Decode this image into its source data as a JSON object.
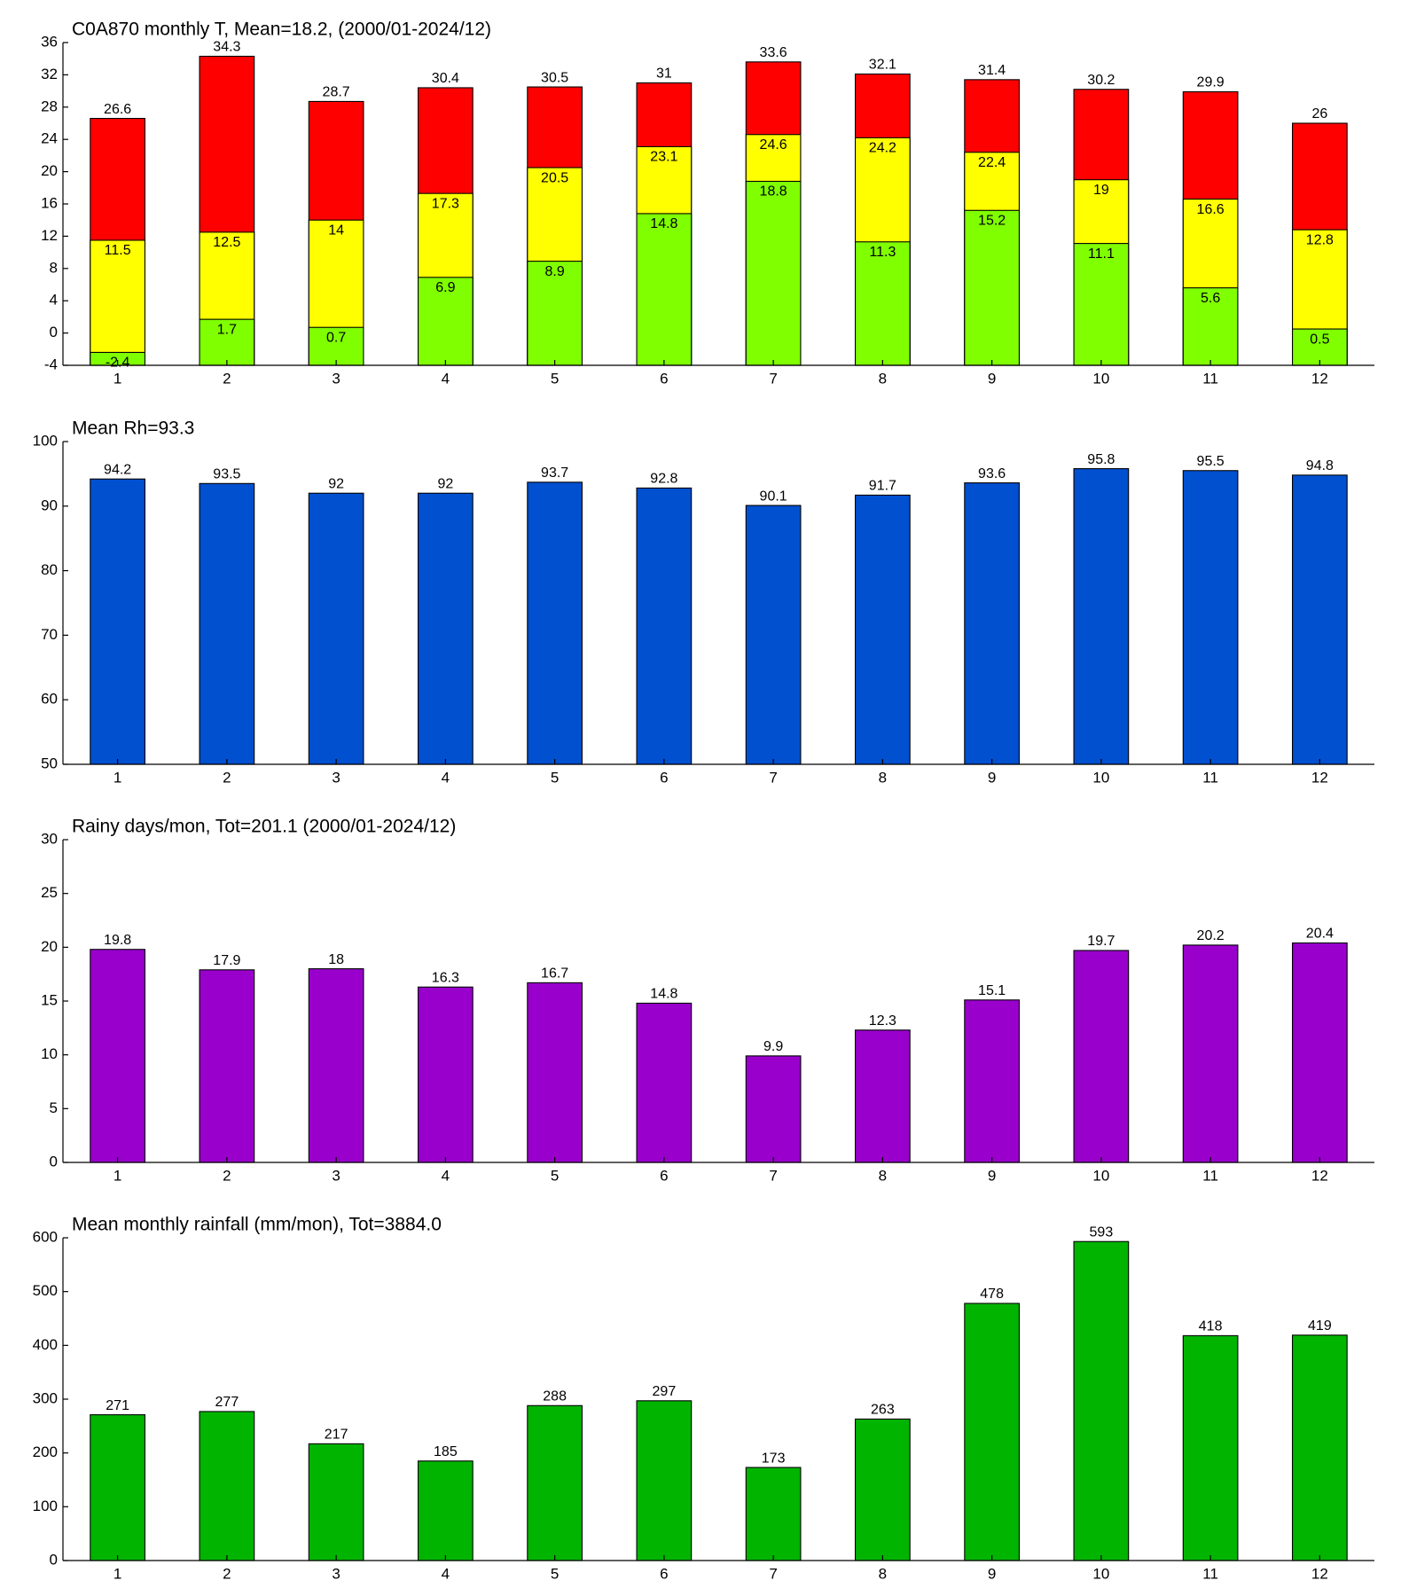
{
  "chart_data": [
    {
      "type": "bar",
      "bar_mode": "overlay",
      "title": "C0A870 monthly T, Mean=18.2, (2000/01-2024/12)",
      "categories": [
        "1",
        "2",
        "3",
        "4",
        "5",
        "6",
        "7",
        "8",
        "9",
        "10",
        "11",
        "12"
      ],
      "series": [
        {
          "color": "#ff0000",
          "values": [
            26.6,
            34.3,
            28.7,
            30.4,
            30.5,
            31,
            33.6,
            32.1,
            31.4,
            30.2,
            29.9,
            26
          ]
        },
        {
          "color": "#ffff00",
          "values": [
            11.5,
            12.5,
            14,
            17.3,
            20.5,
            23.1,
            24.6,
            24.2,
            22.4,
            19,
            16.6,
            12.8
          ]
        },
        {
          "color": "#80ff00",
          "values": [
            -2.4,
            1.7,
            0.7,
            6.9,
            8.9,
            14.8,
            18.8,
            11.3,
            15.2,
            11.1,
            5.6,
            0.5
          ]
        }
      ],
      "ylim": [
        -4,
        36
      ],
      "yticks": [
        -4,
        0,
        4,
        8,
        12,
        16,
        20,
        24,
        28,
        32,
        36
      ]
    },
    {
      "type": "bar",
      "title": "Mean Rh=93.3",
      "categories": [
        "1",
        "2",
        "3",
        "4",
        "5",
        "6",
        "7",
        "8",
        "9",
        "10",
        "11",
        "12"
      ],
      "series": [
        {
          "color": "#0050d0",
          "values": [
            94.2,
            93.5,
            92,
            92,
            93.7,
            92.8,
            90.1,
            91.7,
            93.6,
            95.8,
            95.5,
            94.8
          ]
        }
      ],
      "ylim": [
        50,
        100
      ],
      "yticks": [
        50,
        60,
        70,
        80,
        90,
        100
      ]
    },
    {
      "type": "bar",
      "title": "Rainy days/mon, Tot=201.1 (2000/01-2024/12)",
      "categories": [
        "1",
        "2",
        "3",
        "4",
        "5",
        "6",
        "7",
        "8",
        "9",
        "10",
        "11",
        "12"
      ],
      "series": [
        {
          "color": "#9900cc",
          "values": [
            19.8,
            17.9,
            18,
            16.3,
            16.7,
            14.8,
            9.9,
            12.3,
            15.1,
            19.7,
            20.2,
            20.4
          ]
        }
      ],
      "ylim": [
        0,
        30
      ],
      "yticks": [
        0,
        5,
        10,
        15,
        20,
        25,
        30
      ]
    },
    {
      "type": "bar",
      "title": "Mean monthly rainfall (mm/mon), Tot=3884.0",
      "categories": [
        "1",
        "2",
        "3",
        "4",
        "5",
        "6",
        "7",
        "8",
        "9",
        "10",
        "11",
        "12"
      ],
      "series": [
        {
          "color": "#00b400",
          "values": [
            271,
            277,
            217,
            185,
            288,
            297,
            173,
            263,
            478,
            593,
            418,
            419
          ]
        }
      ],
      "ylim": [
        0,
        600
      ],
      "yticks": [
        0,
        100,
        200,
        300,
        400,
        500,
        600
      ]
    }
  ]
}
